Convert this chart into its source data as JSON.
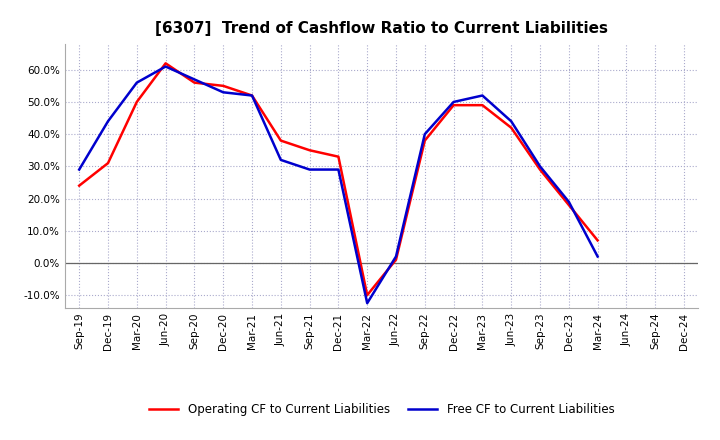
{
  "title": "[6307]  Trend of Cashflow Ratio to Current Liabilities",
  "x_labels": [
    "Sep-19",
    "Dec-19",
    "Mar-20",
    "Jun-20",
    "Sep-20",
    "Dec-20",
    "Mar-21",
    "Jun-21",
    "Sep-21",
    "Dec-21",
    "Mar-22",
    "Jun-22",
    "Sep-22",
    "Dec-22",
    "Mar-23",
    "Jun-23",
    "Sep-23",
    "Dec-23",
    "Mar-24",
    "Jun-24",
    "Sep-24",
    "Dec-24"
  ],
  "operating_cf": [
    0.24,
    0.31,
    0.5,
    0.62,
    0.56,
    0.55,
    0.52,
    0.38,
    0.35,
    0.33,
    -0.1,
    0.01,
    0.38,
    0.49,
    0.49,
    0.42,
    0.29,
    0.18,
    0.07,
    null,
    null,
    null
  ],
  "free_cf": [
    0.29,
    0.44,
    0.56,
    0.61,
    0.57,
    0.53,
    0.52,
    0.32,
    0.29,
    0.29,
    -0.125,
    0.02,
    0.4,
    0.5,
    0.52,
    0.44,
    0.3,
    0.19,
    0.02,
    null,
    null,
    null
  ],
  "operating_color": "#FF0000",
  "free_color": "#0000CD",
  "ylim": [
    -0.14,
    0.68
  ],
  "yticks": [
    -0.1,
    0.0,
    0.1,
    0.2,
    0.3,
    0.4,
    0.5,
    0.6
  ],
  "legend_operating": "Operating CF to Current Liabilities",
  "legend_free": "Free CF to Current Liabilities",
  "background_color": "#FFFFFF",
  "plot_bg_color": "#FFFFFF",
  "grid_color": "#AAAACC",
  "title_fontsize": 11,
  "axis_fontsize": 7.5,
  "legend_fontsize": 8.5
}
